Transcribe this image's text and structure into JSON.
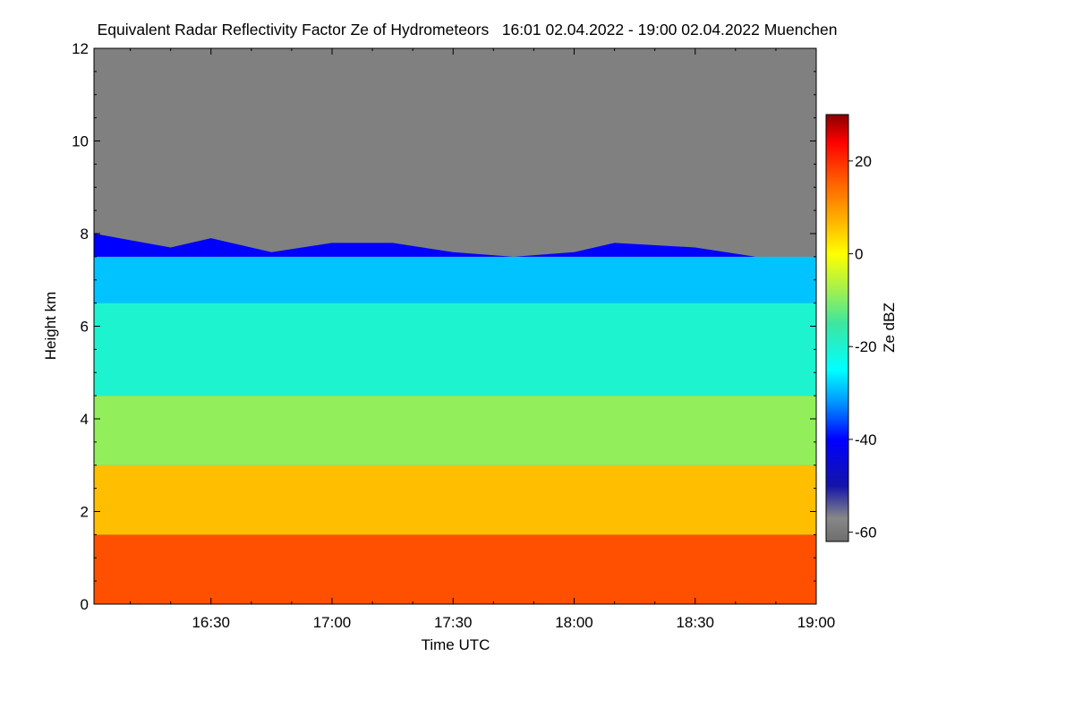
{
  "chart_data": {
    "type": "heatmap",
    "title": "Equivalent Radar Reflectivity Factor Ze of Hydrometeors   16:01 02.04.2022 - 19:00 02.04.2022 Muenchen",
    "xlabel": "Time UTC",
    "ylabel": "Height km",
    "x_start": "16:01",
    "x_end": "19:00",
    "x_ticks": [
      "16:30",
      "17:00",
      "17:30",
      "18:00",
      "18:30",
      "19:00"
    ],
    "y_ticks": [
      0,
      2,
      4,
      6,
      8,
      10,
      12
    ],
    "ylim": [
      0,
      12
    ],
    "colorbar": {
      "label": "Ze dBZ",
      "range": [
        -62,
        30
      ],
      "ticks": [
        20,
        0,
        -20,
        -40,
        -60
      ],
      "stops": [
        {
          "value": -62,
          "color": "#6e6e6e"
        },
        {
          "value": -57,
          "color": "#888888"
        },
        {
          "value": -50,
          "color": "#1414aa"
        },
        {
          "value": -40,
          "color": "#0000ff"
        },
        {
          "value": -32,
          "color": "#0096ff"
        },
        {
          "value": -25,
          "color": "#00ffff"
        },
        {
          "value": -15,
          "color": "#3ce6a0"
        },
        {
          "value": -8,
          "color": "#a0f050"
        },
        {
          "value": 0,
          "color": "#ffff00"
        },
        {
          "value": 8,
          "color": "#ffaa00"
        },
        {
          "value": 16,
          "color": "#ff5a00"
        },
        {
          "value": 24,
          "color": "#ff0000"
        },
        {
          "value": 30,
          "color": "#8b0000"
        }
      ]
    },
    "no_signal_color": "#808080",
    "echo_top_km": [
      {
        "time": "16:01",
        "top": 8.0
      },
      {
        "time": "16:20",
        "top": 7.7
      },
      {
        "time": "16:30",
        "top": 7.9
      },
      {
        "time": "16:45",
        "top": 7.6
      },
      {
        "time": "17:00",
        "top": 7.8
      },
      {
        "time": "17:15",
        "top": 7.8
      },
      {
        "time": "17:30",
        "top": 7.6
      },
      {
        "time": "17:45",
        "top": 7.5
      },
      {
        "time": "18:00",
        "top": 7.6
      },
      {
        "time": "18:10",
        "top": 7.8
      },
      {
        "time": "18:30",
        "top": 7.7
      },
      {
        "time": "18:45",
        "top": 7.5
      },
      {
        "time": "19:00",
        "top": 7.5
      }
    ],
    "reflectivity_bands": [
      {
        "height_from": 0,
        "height_to": 1.5,
        "ze": 17
      },
      {
        "height_from": 1.5,
        "height_to": 3.0,
        "ze": 6
      },
      {
        "height_from": 3.0,
        "height_to": 4.5,
        "ze": -9
      },
      {
        "height_from": 4.5,
        "height_to": 6.5,
        "ze": -20
      },
      {
        "height_from": 6.5,
        "height_to": 7.5,
        "ze": -29
      },
      {
        "height_from": 7.5,
        "height_to": 8.0,
        "ze": -40
      }
    ]
  }
}
